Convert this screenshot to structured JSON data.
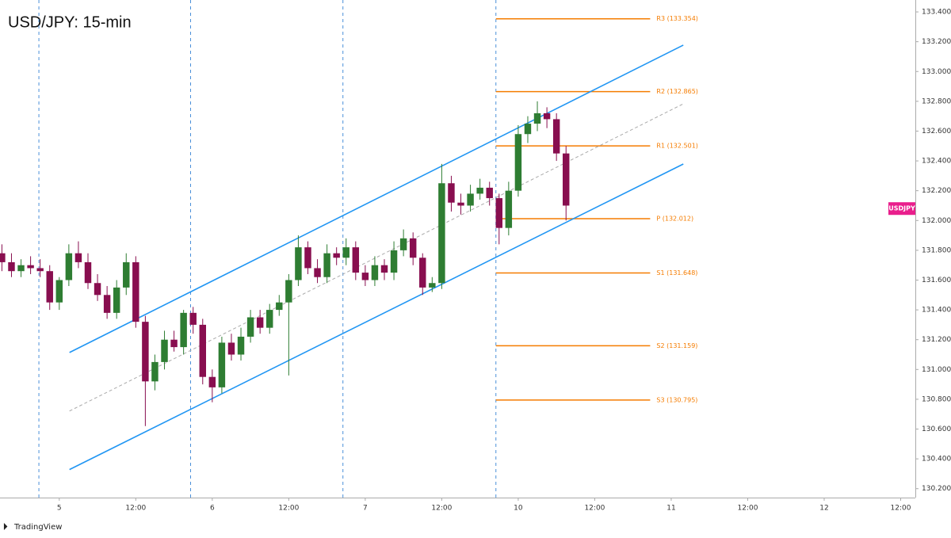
{
  "chart_data": {
    "type": "candlestick",
    "title": "USD/JPY: 15-min",
    "brand": "TradingView",
    "x": [
      -9,
      -7.5,
      -6,
      -4.5,
      -3,
      -1.5,
      0,
      1.5,
      3,
      4.5,
      6,
      7.5,
      9,
      10.5,
      12,
      13.5,
      15,
      16.5,
      18,
      19.5,
      21,
      22.5,
      24,
      25.5,
      27,
      28.5,
      30,
      31.5,
      33,
      34.5,
      36,
      37.5,
      39,
      40.5,
      42,
      43.5,
      45,
      46.5,
      48,
      49.5,
      51,
      52.5,
      54,
      55.5,
      57,
      58.5,
      60,
      61.5,
      63,
      64.5,
      66,
      67.5,
      69,
      70.5,
      72,
      73.5,
      75,
      76.5,
      78,
      79.5
    ],
    "open": [
      131.78,
      131.72,
      131.66,
      131.7,
      131.68,
      131.66,
      131.45,
      131.6,
      131.78,
      131.72,
      131.58,
      131.5,
      131.38,
      131.55,
      131.72,
      131.32,
      130.92,
      131.05,
      131.2,
      131.15,
      131.38,
      131.3,
      130.95,
      130.88,
      131.18,
      131.1,
      131.22,
      131.35,
      131.28,
      131.4,
      131.45,
      131.6,
      131.82,
      131.68,
      131.62,
      131.78,
      131.75,
      131.82,
      131.65,
      131.6,
      131.7,
      131.65,
      131.8,
      131.88,
      131.75,
      131.55,
      131.58,
      132.25,
      132.12,
      132.1,
      132.18,
      132.22,
      132.15,
      131.95,
      132.2,
      132.58,
      132.65,
      132.72,
      132.68,
      132.45
    ],
    "high": [
      131.84,
      131.78,
      131.74,
      131.76,
      131.74,
      131.7,
      131.62,
      131.84,
      131.86,
      131.78,
      131.64,
      131.56,
      131.6,
      131.78,
      131.76,
      131.36,
      131.1,
      131.26,
      131.26,
      131.4,
      131.42,
      131.34,
      131.0,
      131.22,
      131.24,
      131.28,
      131.4,
      131.4,
      131.44,
      131.5,
      131.64,
      131.9,
      131.86,
      131.74,
      131.84,
      131.82,
      131.88,
      131.86,
      131.7,
      131.76,
      131.74,
      131.86,
      131.94,
      131.92,
      131.78,
      131.62,
      132.38,
      132.3,
      132.18,
      132.24,
      132.28,
      132.26,
      132.18,
      132.26,
      132.64,
      132.7,
      132.8,
      132.76,
      132.72,
      132.5
    ],
    "low": [
      131.66,
      131.62,
      131.62,
      131.64,
      131.62,
      131.4,
      131.4,
      131.56,
      131.68,
      131.54,
      131.46,
      131.34,
      131.34,
      131.5,
      131.28,
      130.62,
      130.86,
      131.0,
      131.12,
      131.1,
      131.24,
      130.9,
      130.78,
      130.84,
      131.06,
      131.06,
      131.18,
      131.24,
      131.24,
      131.36,
      130.96,
      131.56,
      131.64,
      131.58,
      131.58,
      131.7,
      131.7,
      131.6,
      131.56,
      131.56,
      131.6,
      131.6,
      131.76,
      131.7,
      131.5,
      131.52,
      131.54,
      132.06,
      132.04,
      132.06,
      132.14,
      132.1,
      131.84,
      131.9,
      132.16,
      132.52,
      132.6,
      132.62,
      132.4,
      132.0
    ],
    "close": [
      131.72,
      131.66,
      131.7,
      131.68,
      131.66,
      131.45,
      131.6,
      131.78,
      131.72,
      131.58,
      131.5,
      131.38,
      131.55,
      131.72,
      131.32,
      130.92,
      131.05,
      131.2,
      131.15,
      131.38,
      131.3,
      130.95,
      130.88,
      131.18,
      131.1,
      131.22,
      131.35,
      131.28,
      131.4,
      131.45,
      131.6,
      131.82,
      131.68,
      131.62,
      131.78,
      131.75,
      131.82,
      131.65,
      131.6,
      131.7,
      131.65,
      131.8,
      131.88,
      131.75,
      131.55,
      131.58,
      132.25,
      132.12,
      132.1,
      132.18,
      132.22,
      132.15,
      131.95,
      132.2,
      132.58,
      132.65,
      132.72,
      132.68,
      132.45,
      132.1
    ],
    "up_color": "#2e7d32",
    "down_color": "#880e4f",
    "xlim": [
      -9.3,
      134.3
    ],
    "xticks": [
      {
        "value": 0,
        "label": "5"
      },
      {
        "value": 12,
        "label": "12:00"
      },
      {
        "value": 24,
        "label": "6"
      },
      {
        "value": 36,
        "label": "12:00"
      },
      {
        "value": 48,
        "label": "7"
      },
      {
        "value": 60,
        "label": "12:00"
      },
      {
        "value": 72,
        "label": "10"
      },
      {
        "value": 84,
        "label": "12:00"
      },
      {
        "value": 96,
        "label": "11"
      },
      {
        "value": 108,
        "label": "12:00"
      },
      {
        "value": 120,
        "label": "12"
      },
      {
        "value": 132,
        "label": "12:00"
      }
    ],
    "session_breaks": [
      -3.2,
      20.6,
      44.5,
      68.5
    ],
    "ylim": [
      130.14,
      133.48
    ],
    "yticks": [
      {
        "value": 130.2,
        "label": "130.200"
      },
      {
        "value": 130.4,
        "label": "130.400"
      },
      {
        "value": 130.6,
        "label": "130.600"
      },
      {
        "value": 130.8,
        "label": "130.800"
      },
      {
        "value": 131.0,
        "label": "131.000"
      },
      {
        "value": 131.2,
        "label": "131.200"
      },
      {
        "value": 131.4,
        "label": "131.400"
      },
      {
        "value": 131.6,
        "label": "131.600"
      },
      {
        "value": 131.8,
        "label": "131.800"
      },
      {
        "value": 132.0,
        "label": "132.000"
      },
      {
        "value": 132.2,
        "label": "132.200"
      },
      {
        "value": 132.4,
        "label": "132.400"
      },
      {
        "value": 132.6,
        "label": "132.600"
      },
      {
        "value": 132.8,
        "label": "132.800"
      },
      {
        "value": 133.0,
        "label": "133.000"
      },
      {
        "value": 133.2,
        "label": "133.200"
      },
      {
        "value": 133.4,
        "label": "133.400"
      }
    ],
    "channel": {
      "color": "#2196f3",
      "upper": {
        "x": [
          1.6,
          97.9
        ],
        "y": [
          131.114,
          133.177
        ]
      },
      "lower": {
        "x": [
          1.6,
          97.9
        ],
        "y": [
          130.328,
          132.379
        ]
      },
      "middle": {
        "x": [
          1.6,
          97.9
        ],
        "y": [
          130.721,
          132.783
        ]
      }
    },
    "pivots": {
      "color": "#f57c00",
      "x": [
        68.5,
        92.7
      ],
      "levels": [
        {
          "label": "R3 (133.354)",
          "value": 133.354
        },
        {
          "label": "R2 (132.865)",
          "value": 132.865
        },
        {
          "label": "R1 (132.501)",
          "value": 132.501
        },
        {
          "label": "P (132.012)",
          "value": 132.012
        },
        {
          "label": "S1 (131.648)",
          "value": 131.648
        },
        {
          "label": "S2 (131.159)",
          "value": 131.159
        },
        {
          "label": "S3 (130.795)",
          "value": 130.795
        }
      ]
    },
    "last_label": {
      "text": "USDJPY",
      "value": 132.08,
      "color": "#e91e8c"
    }
  }
}
